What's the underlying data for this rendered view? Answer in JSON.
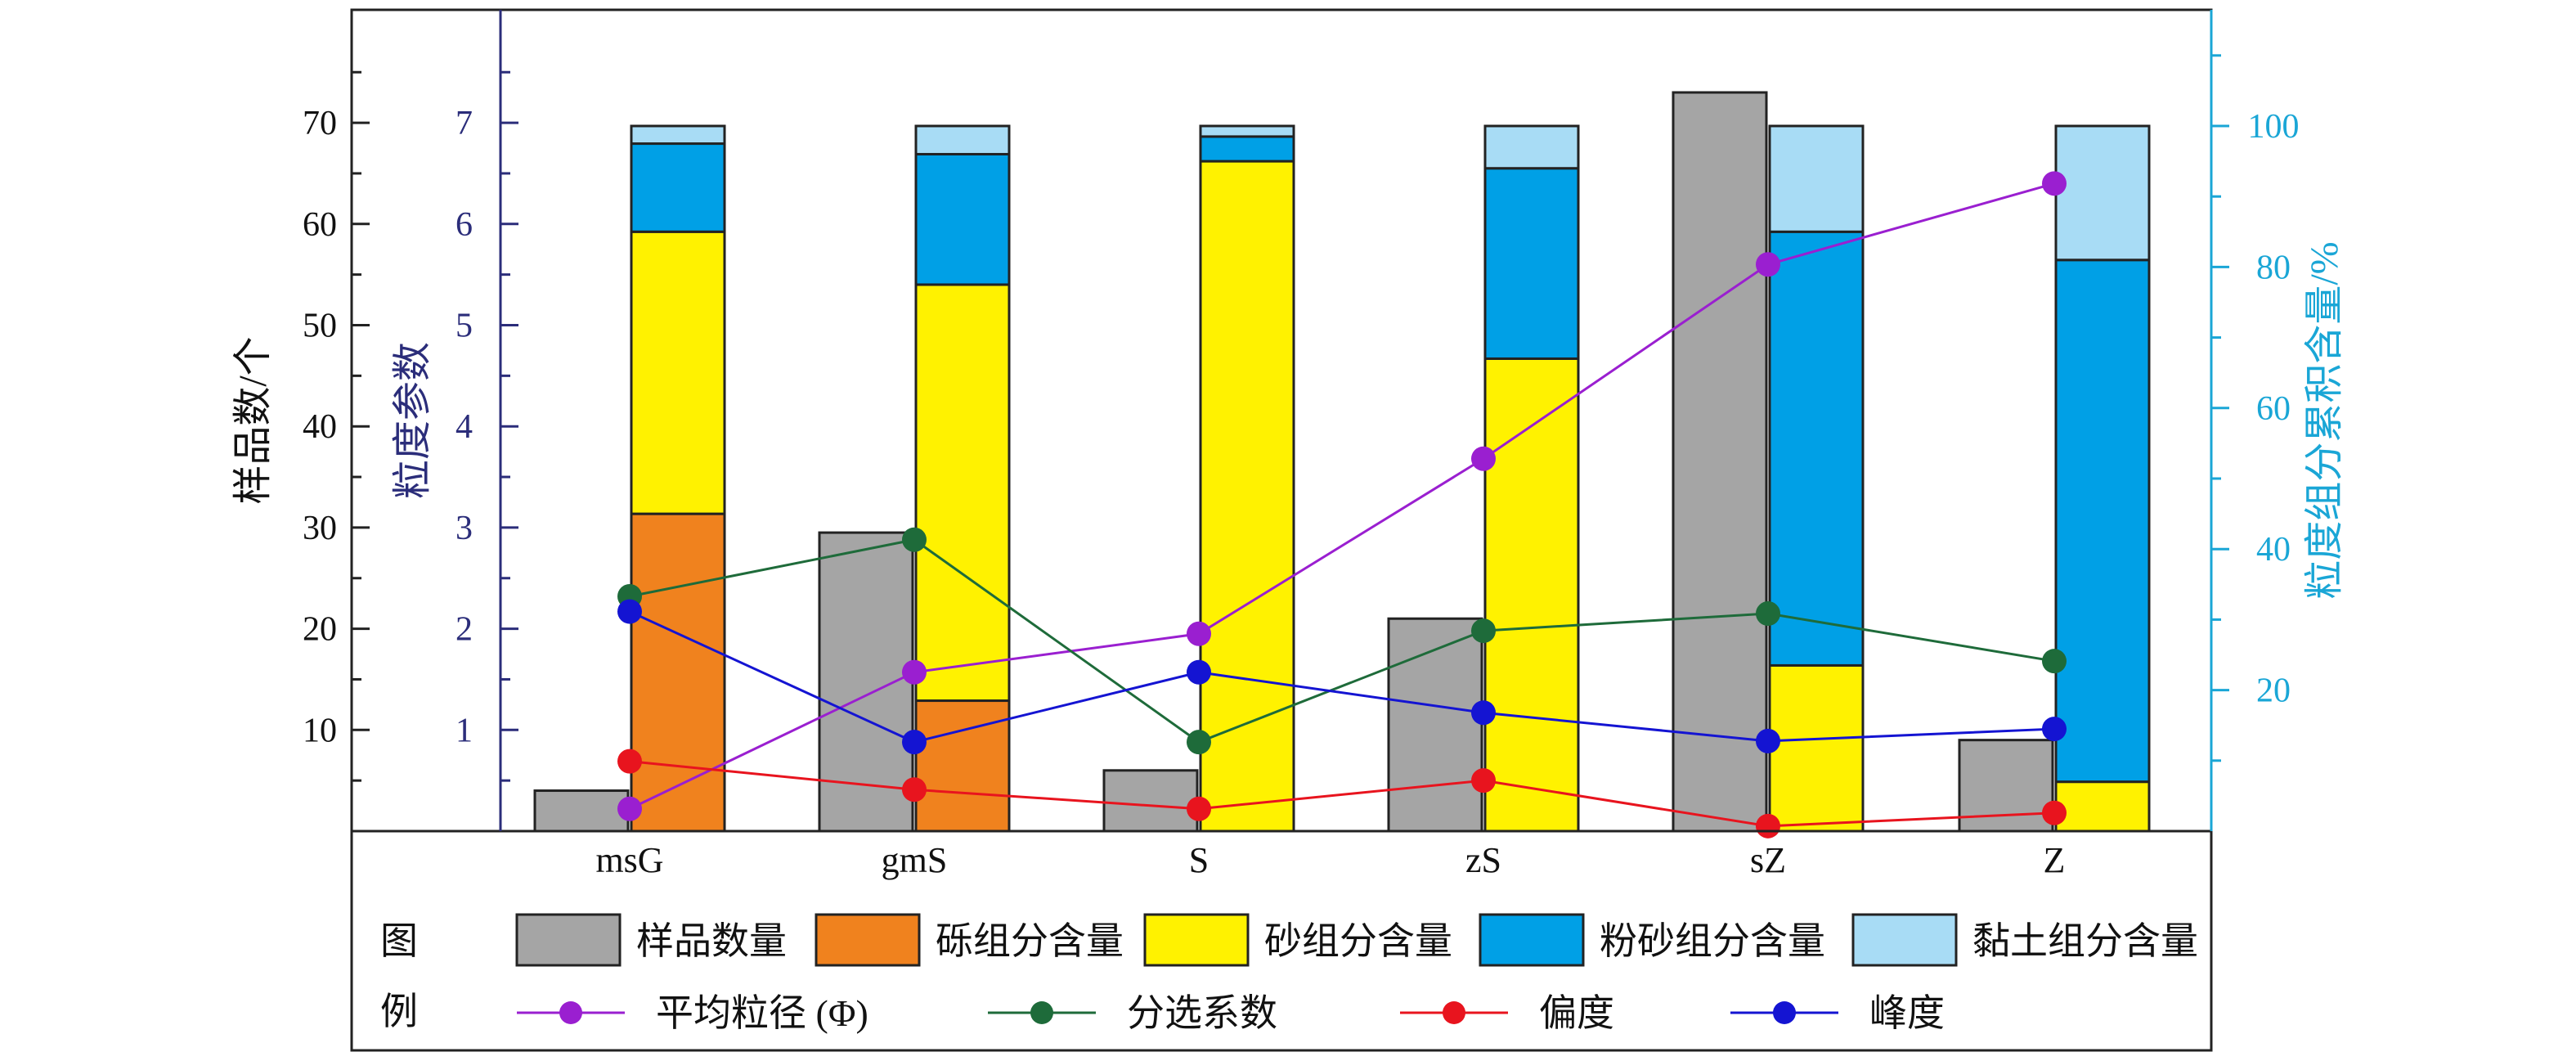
{
  "chart_data": {
    "type": "bar",
    "categories": [
      "msG",
      "gmS",
      "S",
      "zS",
      "sZ",
      "Z"
    ],
    "axes": {
      "left_outer": {
        "label": "样品数/个",
        "ticks": [
          "10",
          "20",
          "30",
          "40",
          "50",
          "60",
          "70"
        ],
        "range": [
          0,
          80
        ]
      },
      "left_inner": {
        "label": "粒度参数",
        "ticks": [
          "1",
          "2",
          "3",
          "4",
          "5",
          "6",
          "7"
        ],
        "range": [
          0,
          8
        ]
      },
      "right": {
        "label": "粒度组分累积含量/%",
        "ticks": [
          "20",
          "40",
          "60",
          "80",
          "100"
        ],
        "range": [
          0,
          116
        ]
      }
    },
    "sample_count": {
      "name": "样品数量",
      "color": "#a5a5a5",
      "values": [
        4,
        29.5,
        6,
        21,
        73,
        9
      ]
    },
    "stacked_components": [
      {
        "name": "砾组分含量",
        "color": "#f0821e",
        "values": [
          45,
          18.5,
          0,
          0,
          0,
          0
        ]
      },
      {
        "name": "砂组分含量",
        "color": "#fff200",
        "values": [
          40,
          59,
          95,
          67,
          23.5,
          7
        ]
      },
      {
        "name": "粉砂组分含量",
        "color": "#00a0e6",
        "values": [
          12.5,
          18.5,
          3.5,
          27,
          61.5,
          74
        ]
      },
      {
        "name": "黏土组分含量",
        "color": "#a8dcf5",
        "values": [
          2.5,
          4,
          1.5,
          6,
          15,
          19
        ]
      }
    ],
    "lines": [
      {
        "name": "平均粒径 (Φ)",
        "color": "#9a1fd0",
        "values": [
          0.22,
          1.57,
          1.95,
          3.68,
          5.6,
          6.4
        ]
      },
      {
        "name": "分选系数",
        "color": "#1e6b3a",
        "values": [
          2.32,
          2.88,
          0.88,
          1.98,
          2.15,
          1.68
        ]
      },
      {
        "name": "偏度",
        "color": "#e8141e",
        "values": [
          0.69,
          0.41,
          0.22,
          0.5,
          0.05,
          0.18
        ]
      },
      {
        "name": "峰度",
        "color": "#1414d2",
        "values": [
          2.17,
          0.88,
          1.57,
          1.17,
          0.89,
          1.01
        ]
      }
    ],
    "legend": {
      "heading": [
        "图",
        "例"
      ],
      "items": [
        "样品数量",
        "砾组分含量",
        "砂组分含量",
        "粉砂组分含量",
        "黏土组分含量",
        "平均粒径 (Φ)",
        "分选系数",
        "偏度",
        "峰度"
      ]
    }
  }
}
